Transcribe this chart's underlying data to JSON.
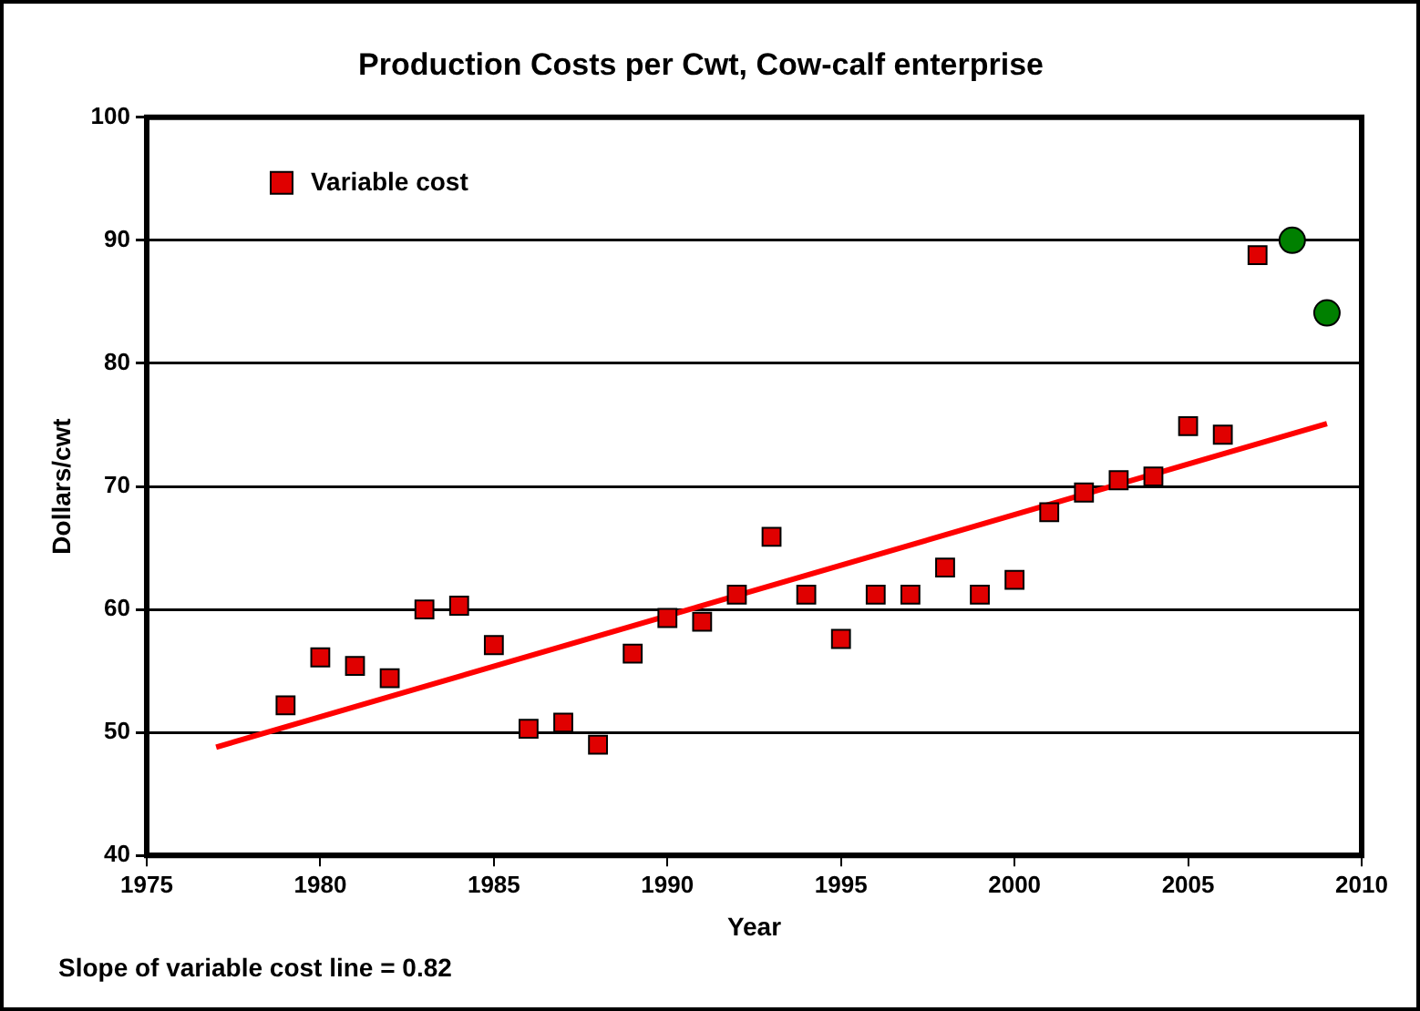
{
  "chart_data": {
    "type": "scatter",
    "title": "Production Costs per Cwt, Cow-calf enterprise",
    "xlabel": "Year",
    "ylabel": "Dollars/cwt",
    "xlim": [
      1975,
      2010
    ],
    "xticks": [
      1975,
      1980,
      1985,
      1990,
      1995,
      2000,
      2005,
      2010
    ],
    "ylim": [
      40,
      100
    ],
    "yticks": [
      40,
      50,
      60,
      70,
      80,
      90,
      100
    ],
    "grid": "y",
    "legend": "top left",
    "series": [
      {
        "name": "Variable cost",
        "color": "#e00000",
        "marker": "square",
        "x": [
          1979,
          1980,
          1981,
          1982,
          1983,
          1984,
          1985,
          1986,
          1987,
          1988,
          1989,
          1990,
          1991,
          1992,
          1993,
          1994,
          1995,
          1996,
          1997,
          1998,
          1999,
          2000,
          2001,
          2002,
          2003,
          2004,
          2005,
          2006,
          2007
        ],
        "values": [
          52.2,
          56.1,
          55.4,
          54.4,
          60.0,
          60.3,
          57.1,
          50.3,
          50.8,
          49.0,
          56.4,
          59.3,
          59.0,
          61.2,
          65.9,
          61.2,
          57.6,
          61.2,
          61.2,
          63.4,
          61.2,
          62.4,
          67.9,
          69.5,
          70.5,
          70.8,
          74.9,
          74.2,
          88.8
        ]
      },
      {
        "color": "#008000",
        "marker": "circle",
        "x": [
          2008,
          2009
        ],
        "values": [
          90.0,
          84.1
        ]
      },
      {
        "type": "line",
        "color": "#ff0000",
        "marker": "none",
        "x": [
          1977,
          2009
        ],
        "values": [
          48.8,
          75.1
        ]
      }
    ],
    "annotations": [
      "Slope of variable cost line = 0.82"
    ]
  }
}
